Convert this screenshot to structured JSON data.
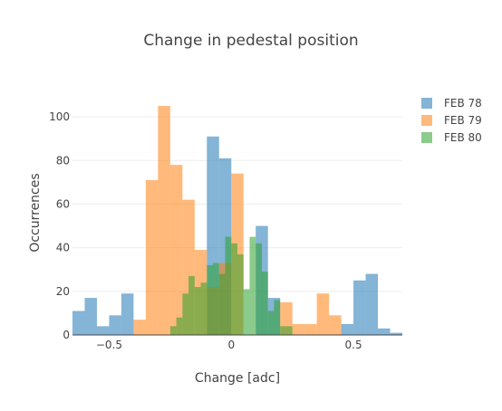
{
  "chart_data": {
    "type": "bar",
    "title": "Change in pedestal position",
    "xlabel": "Change [adc]",
    "ylabel": "Occurrences",
    "xlim": [
      -0.65,
      0.7
    ],
    "ylim": [
      0,
      110
    ],
    "xticks": [
      -0.5,
      0,
      0.5
    ],
    "xtick_labels": [
      "−0.5",
      "0",
      "0.5"
    ],
    "yticks": [
      0,
      20,
      40,
      60,
      80,
      100
    ],
    "ytick_labels": [
      "0",
      "20",
      "40",
      "60",
      "80",
      "100"
    ],
    "grid": true,
    "legend_position": "top-right",
    "barmode": "overlay",
    "series": [
      {
        "name": "FEB 78",
        "color": "#1f77b4",
        "bin_width": 0.05,
        "bins": [
          [
            -0.65,
            11
          ],
          [
            -0.6,
            17
          ],
          [
            -0.55,
            4
          ],
          [
            -0.5,
            9
          ],
          [
            -0.45,
            19
          ],
          [
            -0.4,
            0
          ],
          [
            -0.35,
            0
          ],
          [
            -0.3,
            0
          ],
          [
            -0.25,
            0
          ],
          [
            -0.2,
            0
          ],
          [
            -0.15,
            0
          ],
          [
            -0.1,
            91
          ],
          [
            -0.05,
            81
          ],
          [
            0,
            0
          ],
          [
            0.05,
            0
          ],
          [
            0.1,
            50
          ],
          [
            0.15,
            17
          ],
          [
            0.2,
            0
          ],
          [
            0.25,
            0
          ],
          [
            0.3,
            0
          ],
          [
            0.35,
            0
          ],
          [
            0.4,
            0
          ],
          [
            0.45,
            5
          ],
          [
            0.5,
            25
          ],
          [
            0.55,
            28
          ],
          [
            0.6,
            3
          ],
          [
            0.65,
            1
          ]
        ]
      },
      {
        "name": "FEB 79",
        "color": "#ff7f0e",
        "bin_width": 0.05,
        "bins": [
          [
            -0.4,
            7
          ],
          [
            -0.35,
            71
          ],
          [
            -0.3,
            105
          ],
          [
            -0.25,
            78
          ],
          [
            -0.2,
            62
          ],
          [
            -0.15,
            39
          ],
          [
            -0.1,
            22
          ],
          [
            -0.05,
            33
          ],
          [
            0,
            74
          ],
          [
            0.05,
            0
          ],
          [
            0.1,
            0
          ],
          [
            0.15,
            0
          ],
          [
            0.2,
            15
          ],
          [
            0.25,
            5
          ],
          [
            0.3,
            5
          ],
          [
            0.35,
            19
          ],
          [
            0.4,
            9
          ]
        ]
      },
      {
        "name": "FEB 80",
        "color": "#2ca02c",
        "bin_width": 0.025,
        "bins": [
          [
            -0.25,
            4
          ],
          [
            -0.225,
            8
          ],
          [
            -0.2,
            19
          ],
          [
            -0.175,
            27
          ],
          [
            -0.15,
            22
          ],
          [
            -0.125,
            24
          ],
          [
            -0.1,
            32
          ],
          [
            -0.075,
            33
          ],
          [
            -0.05,
            28
          ],
          [
            -0.025,
            45
          ],
          [
            0,
            42
          ],
          [
            0.025,
            37
          ],
          [
            0.05,
            21
          ],
          [
            0.075,
            45
          ],
          [
            0.1,
            42
          ],
          [
            0.125,
            29
          ],
          [
            0.15,
            11
          ],
          [
            0.175,
            16
          ],
          [
            0.2,
            4
          ],
          [
            0.225,
            4
          ]
        ]
      }
    ]
  }
}
